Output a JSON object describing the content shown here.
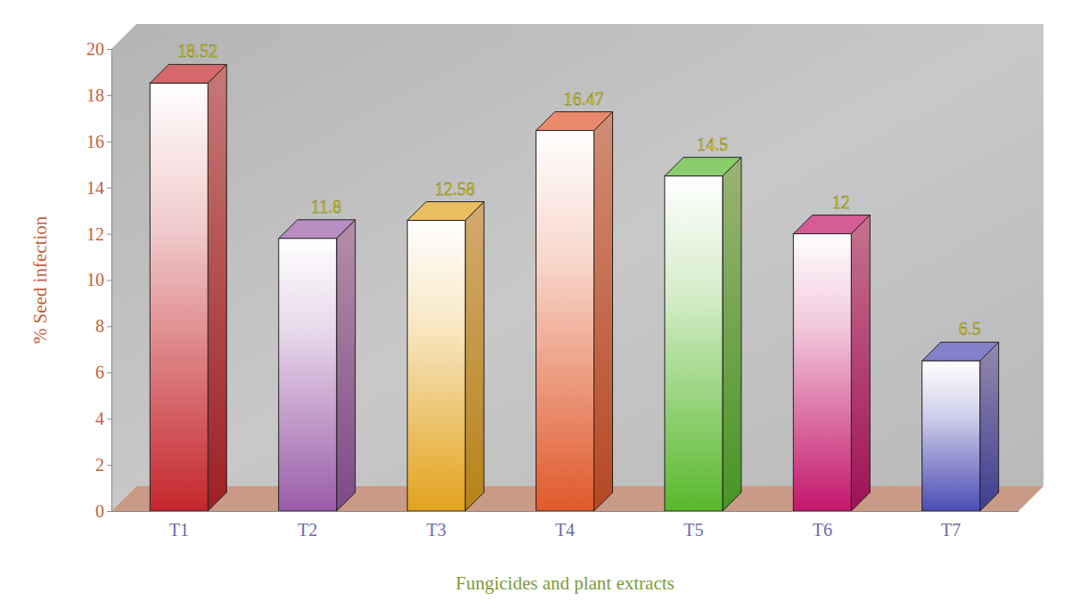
{
  "chart_data": {
    "type": "bar",
    "categories": [
      "T1",
      "T2",
      "T3",
      "T4",
      "T5",
      "T6",
      "T7"
    ],
    "values": [
      18.52,
      11.8,
      12.58,
      16.47,
      14.5,
      12,
      6.5
    ],
    "colors": [
      "#c4262c",
      "#9a5ca8",
      "#e2a21c",
      "#e0582a",
      "#58b82c",
      "#c2166a",
      "#4c4cb4"
    ],
    "x_label": "Fungicides and plant extracts",
    "y_label": "% Seed infection",
    "ylim": [
      0,
      20
    ],
    "yticks": [
      0,
      2,
      4,
      6,
      8,
      10,
      12,
      14,
      16,
      18,
      20
    ],
    "grid": false,
    "data_labels": true
  }
}
